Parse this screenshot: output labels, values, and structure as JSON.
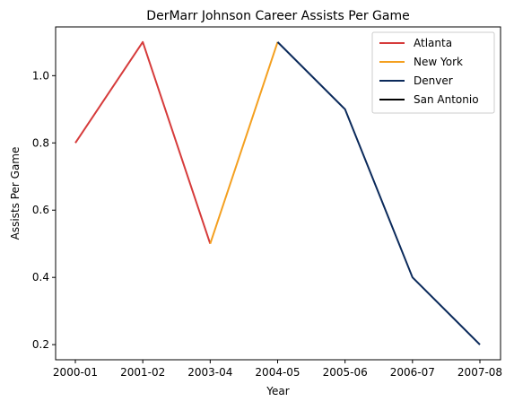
{
  "chart_data": {
    "type": "line",
    "title": "DerMarr Johnson Career Assists Per Game",
    "xlabel": "Year",
    "ylabel": "Assists Per Game",
    "categories": [
      "2000-01",
      "2001-02",
      "2003-04",
      "2004-05",
      "2005-06",
      "2006-07",
      "2007-08"
    ],
    "y_ticks": [
      "0.2",
      "0.4",
      "0.6",
      "0.8",
      "1.0"
    ],
    "ylim": [
      0.155,
      1.145
    ],
    "grid": false,
    "legend_position": "top-right",
    "series": [
      {
        "name": "Atlanta",
        "color": "#d63b3b",
        "points": [
          [
            "2000-01",
            0.8
          ],
          [
            "2001-02",
            1.1
          ],
          [
            "2003-04",
            0.5
          ]
        ]
      },
      {
        "name": "New York",
        "color": "#f4a020",
        "points": [
          [
            "2003-04",
            0.5
          ],
          [
            "2004-05",
            1.1
          ]
        ]
      },
      {
        "name": "Denver",
        "color": "#0b2a5b",
        "points": [
          [
            "2004-05",
            1.1
          ],
          [
            "2005-06",
            0.9
          ],
          [
            "2006-07",
            0.4
          ],
          [
            "2007-08",
            0.2
          ]
        ]
      },
      {
        "name": "San Antonio",
        "color": "#000000",
        "points": []
      }
    ]
  }
}
